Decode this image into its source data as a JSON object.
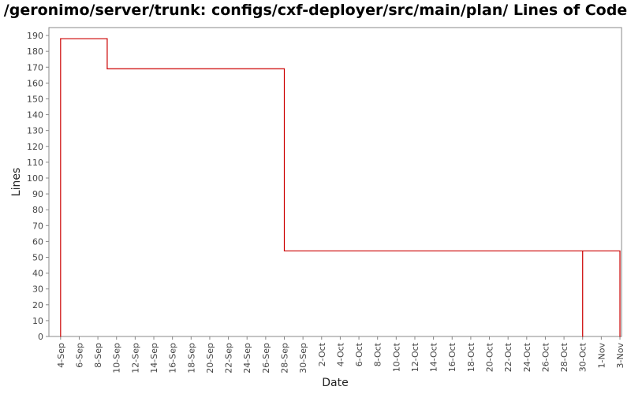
{
  "chart_data": {
    "type": "line",
    "title": "/geronimo/server/trunk: configs/cxf-deployer/src/main/plan/ Lines of Code",
    "xlabel": "Date",
    "ylabel": "Lines",
    "ylim": [
      0,
      195
    ],
    "yticks": [
      0,
      10,
      20,
      30,
      40,
      50,
      60,
      70,
      80,
      90,
      100,
      110,
      120,
      130,
      140,
      150,
      160,
      170,
      180,
      190
    ],
    "xlim": [
      "2007-09-03",
      "2007-11-03"
    ],
    "xticks": [
      {
        "date": "2007-09-04",
        "label": "4-Sep"
      },
      {
        "date": "2007-09-06",
        "label": "6-Sep"
      },
      {
        "date": "2007-09-08",
        "label": "8-Sep"
      },
      {
        "date": "2007-09-10",
        "label": "10-Sep"
      },
      {
        "date": "2007-09-12",
        "label": "12-Sep"
      },
      {
        "date": "2007-09-14",
        "label": "14-Sep"
      },
      {
        "date": "2007-09-16",
        "label": "16-Sep"
      },
      {
        "date": "2007-09-18",
        "label": "18-Sep"
      },
      {
        "date": "2007-09-20",
        "label": "20-Sep"
      },
      {
        "date": "2007-09-22",
        "label": "22-Sep"
      },
      {
        "date": "2007-09-24",
        "label": "24-Sep"
      },
      {
        "date": "2007-09-26",
        "label": "26-Sep"
      },
      {
        "date": "2007-09-28",
        "label": "28-Sep"
      },
      {
        "date": "2007-09-30",
        "label": "30-Sep"
      },
      {
        "date": "2007-10-02",
        "label": "2-Oct"
      },
      {
        "date": "2007-10-04",
        "label": "4-Oct"
      },
      {
        "date": "2007-10-06",
        "label": "6-Oct"
      },
      {
        "date": "2007-10-08",
        "label": "8-Oct"
      },
      {
        "date": "2007-10-10",
        "label": "10-Oct"
      },
      {
        "date": "2007-10-12",
        "label": "12-Oct"
      },
      {
        "date": "2007-10-14",
        "label": "14-Oct"
      },
      {
        "date": "2007-10-16",
        "label": "16-Oct"
      },
      {
        "date": "2007-10-18",
        "label": "18-Oct"
      },
      {
        "date": "2007-10-20",
        "label": "20-Oct"
      },
      {
        "date": "2007-10-22",
        "label": "22-Oct"
      },
      {
        "date": "2007-10-24",
        "label": "24-Oct"
      },
      {
        "date": "2007-10-26",
        "label": "26-Oct"
      },
      {
        "date": "2007-10-28",
        "label": "28-Oct"
      },
      {
        "date": "2007-10-30",
        "label": "30-Oct"
      },
      {
        "date": "2007-11-01",
        "label": "1-Nov"
      },
      {
        "date": "2007-11-03",
        "label": "3-Nov"
      }
    ],
    "step": true,
    "grid": false,
    "series": [
      {
        "color": "#cc0000",
        "points": [
          {
            "x": "2007-09-04",
            "y": 0
          },
          {
            "x": "2007-09-04",
            "y": 188
          },
          {
            "x": "2007-09-09",
            "y": 169
          },
          {
            "x": "2007-09-28",
            "y": 54
          },
          {
            "x": "2007-10-30",
            "y": 0
          },
          {
            "x": "2007-10-30",
            "y": 54
          },
          {
            "x": "2007-11-03",
            "y": 0
          }
        ]
      }
    ]
  }
}
